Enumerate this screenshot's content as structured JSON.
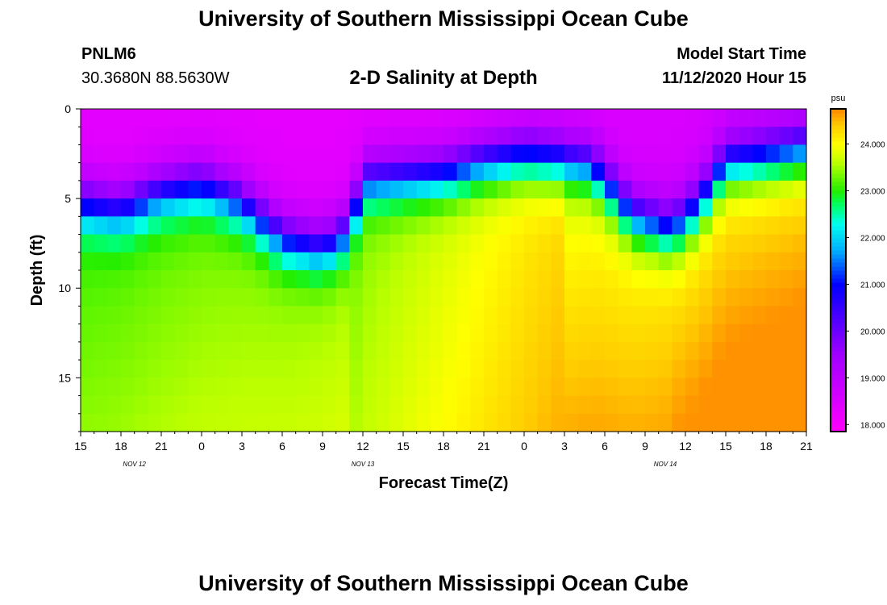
{
  "header": {
    "title": "University of Southern Mississippi Ocean Cube",
    "station_id": "PNLM6",
    "station_coords": "30.3680N 88.5630W",
    "plot_title": "2-D Salinity at Depth",
    "model_start_label": "Model Start Time",
    "model_start_value": "11/12/2020 Hour 15"
  },
  "footer": {
    "title": "University of Southern Mississippi Ocean Cube"
  },
  "chart_data": {
    "type": "heatmap",
    "title": "2-D Salinity at Depth",
    "xlabel": "Forecast Time(Z)",
    "ylabel": "Depth (ft)",
    "x_tick_labels": [
      "15",
      "18",
      "21",
      "0",
      "3",
      "6",
      "9",
      "12",
      "15",
      "18",
      "21",
      "0",
      "3",
      "6",
      "9",
      "12",
      "15",
      "18",
      "21"
    ],
    "x_range_hours": [
      0,
      54
    ],
    "date_labels": [
      {
        "text": "NOV 12",
        "hour": 4
      },
      {
        "text": "NOV 13",
        "hour": 21
      },
      {
        "text": "NOV 14",
        "hour": 43.5
      }
    ],
    "y_tick_labels": [
      "0",
      "5",
      "10",
      "15"
    ],
    "y_tick_values": [
      0,
      5,
      10,
      15
    ],
    "ylim": [
      0,
      18
    ],
    "y_inverted": true,
    "colorbar": {
      "unit": "psu",
      "min": 17.85,
      "max": 24.75,
      "tick_values": [
        18,
        19,
        20,
        21,
        22,
        23,
        24
      ],
      "tick_labels": [
        "18.000",
        "19.000",
        "20.000",
        "21.000",
        "22.000",
        "23.000",
        "24.000"
      ],
      "stops": [
        {
          "v": 17.85,
          "c": "#ff00ff"
        },
        {
          "v": 19.5,
          "c": "#a000ff"
        },
        {
          "v": 21.0,
          "c": "#0000ff"
        },
        {
          "v": 21.7,
          "c": "#00aaff"
        },
        {
          "v": 22.3,
          "c": "#00ffee"
        },
        {
          "v": 22.7,
          "c": "#00ff66"
        },
        {
          "v": 23.0,
          "c": "#22ee00"
        },
        {
          "v": 23.6,
          "c": "#bbff00"
        },
        {
          "v": 24.0,
          "c": "#ffff00"
        },
        {
          "v": 24.4,
          "c": "#ffcc00"
        },
        {
          "v": 24.75,
          "c": "#ff8800"
        }
      ]
    },
    "profile_description": "columns every 1 hour from 15Z Nov 12 (0) to 21Z Nov 14 (54); rows every 1 ft from 0 to 18",
    "halocline_depth_ft": [
      {
        "hour": 0,
        "depth": 5.2
      },
      {
        "hour": 3,
        "depth": 5.6
      },
      {
        "hour": 6,
        "depth": 4.6
      },
      {
        "hour": 9,
        "depth": 4.2
      },
      {
        "hour": 12,
        "depth": 5.2
      },
      {
        "hour": 15,
        "depth": 7.2
      },
      {
        "hour": 18,
        "depth": 7.8
      },
      {
        "hour": 20,
        "depth": 6.8
      },
      {
        "hour": 21,
        "depth": 4.0
      },
      {
        "hour": 24,
        "depth": 3.8
      },
      {
        "hour": 27,
        "depth": 3.6
      },
      {
        "hour": 30,
        "depth": 3.0
      },
      {
        "hour": 33,
        "depth": 2.6
      },
      {
        "hour": 36,
        "depth": 2.9
      },
      {
        "hour": 38,
        "depth": 3.2
      },
      {
        "hour": 39,
        "depth": 4.0
      },
      {
        "hour": 41,
        "depth": 6.0
      },
      {
        "hour": 44,
        "depth": 6.8
      },
      {
        "hour": 46,
        "depth": 5.4
      },
      {
        "hour": 48,
        "depth": 3.0
      },
      {
        "hour": 51,
        "depth": 2.7
      },
      {
        "hour": 54,
        "depth": 2.3
      }
    ],
    "value_range_psu": [
      17.9,
      24.7
    ]
  }
}
